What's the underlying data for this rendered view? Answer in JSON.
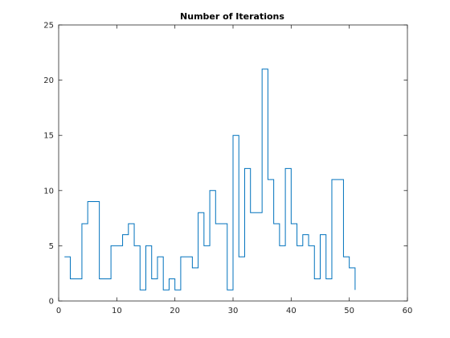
{
  "chart_data": {
    "type": "line",
    "style": "stairs",
    "title": "Number of Iterations",
    "xlabel": "",
    "ylabel": "",
    "xlim": [
      0,
      60
    ],
    "ylim": [
      0,
      25
    ],
    "xticks": [
      0,
      10,
      20,
      30,
      40,
      50,
      60
    ],
    "yticks": [
      0,
      5,
      10,
      15,
      20,
      25
    ],
    "grid": false,
    "box": true,
    "colors": {
      "line": "#0072BD",
      "axes": "#262626",
      "background": "#ffffff"
    },
    "series": [
      {
        "x": [
          1,
          2,
          3,
          4,
          5,
          6,
          7,
          8,
          9,
          10,
          11,
          12,
          13,
          14,
          15,
          16,
          17,
          18,
          19,
          20,
          21,
          22,
          23,
          24,
          25,
          26,
          27,
          28,
          29,
          30,
          31,
          32,
          33,
          34,
          35,
          36,
          37,
          38,
          39,
          40,
          41,
          42,
          43,
          44,
          45,
          46,
          47,
          48,
          49,
          50,
          51
        ],
        "values": [
          4,
          2,
          2,
          7,
          9,
          9,
          2,
          2,
          5,
          5,
          6,
          7,
          5,
          1,
          5,
          2,
          4,
          1,
          2,
          1,
          4,
          4,
          3,
          8,
          5,
          10,
          7,
          7,
          1,
          15,
          4,
          12,
          8,
          8,
          21,
          11,
          7,
          5,
          12,
          7,
          5,
          6,
          5,
          2,
          6,
          2,
          11,
          11,
          4,
          3,
          1
        ]
      }
    ]
  }
}
